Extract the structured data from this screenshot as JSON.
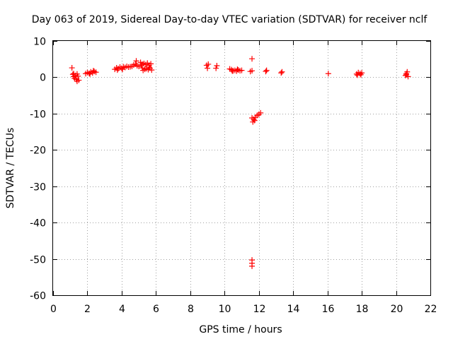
{
  "chart_data": {
    "type": "scatter",
    "title": "Day 063 of 2019, Sidereal Day-to-day VTEC variation (SDTVAR) for receiver nclf",
    "xlabel": "GPS time / hours",
    "ylabel": "SDTVAR / TECUs",
    "xlim": [
      0,
      22
    ],
    "ylim": [
      -60,
      10
    ],
    "xticks": [
      0,
      2,
      4,
      6,
      8,
      10,
      12,
      14,
      16,
      18,
      20,
      22
    ],
    "yticks": [
      10,
      0,
      -10,
      -20,
      -30,
      -40,
      -50,
      -60
    ],
    "grid": true,
    "marker": "plus",
    "color": "#ff0000",
    "series": [
      {
        "name": "SDTVAR",
        "points": [
          [
            1.1,
            2.6
          ],
          [
            1.15,
            0.8
          ],
          [
            1.2,
            0.2
          ],
          [
            1.25,
            -0.3
          ],
          [
            1.3,
            0.5
          ],
          [
            1.35,
            -0.6
          ],
          [
            1.4,
            -1.1
          ],
          [
            1.45,
            0.3
          ],
          [
            1.5,
            -0.8
          ],
          [
            1.2,
            1.0
          ],
          [
            1.4,
            0.9
          ],
          [
            1.9,
            1.0
          ],
          [
            2.0,
            1.3
          ],
          [
            2.1,
            1.1
          ],
          [
            2.2,
            1.5
          ],
          [
            2.3,
            1.2
          ],
          [
            2.4,
            1.6
          ],
          [
            2.5,
            1.4
          ],
          [
            2.15,
            0.9
          ],
          [
            2.35,
            1.8
          ],
          [
            3.6,
            2.2
          ],
          [
            3.7,
            2.6
          ],
          [
            3.8,
            2.4
          ],
          [
            3.9,
            2.8
          ],
          [
            4.0,
            2.5
          ],
          [
            4.1,
            2.9
          ],
          [
            4.2,
            2.7
          ],
          [
            4.3,
            3.0
          ],
          [
            4.4,
            2.8
          ],
          [
            4.5,
            2.9
          ],
          [
            3.75,
            2.0
          ],
          [
            4.05,
            2.2
          ],
          [
            4.6,
            3.0
          ],
          [
            4.7,
            3.4
          ],
          [
            4.8,
            3.6
          ],
          [
            4.85,
            4.5
          ],
          [
            4.9,
            3.2
          ],
          [
            5.0,
            3.0
          ],
          [
            5.1,
            4.1
          ],
          [
            5.15,
            3.2
          ],
          [
            5.2,
            2.6
          ],
          [
            5.25,
            1.9
          ],
          [
            5.3,
            3.8
          ],
          [
            5.35,
            2.2
          ],
          [
            5.4,
            3.5
          ],
          [
            5.45,
            2.4
          ],
          [
            5.5,
            3.9
          ],
          [
            5.55,
            2.1
          ],
          [
            5.6,
            3.3
          ],
          [
            5.65,
            2.5
          ],
          [
            5.7,
            3.7
          ],
          [
            5.75,
            2.0
          ],
          [
            5.2,
            3.6
          ],
          [
            5.6,
            2.8
          ],
          [
            8.95,
            3.3
          ],
          [
            9.0,
            2.5
          ],
          [
            9.05,
            3.6
          ],
          [
            9.5,
            2.5
          ],
          [
            9.55,
            3.2
          ],
          [
            10.3,
            2.3
          ],
          [
            10.4,
            2.1
          ],
          [
            10.5,
            1.8
          ],
          [
            10.6,
            1.9
          ],
          [
            10.7,
            1.7
          ],
          [
            10.8,
            2.0
          ],
          [
            10.9,
            1.8
          ],
          [
            11.0,
            1.9
          ],
          [
            10.45,
            1.7
          ],
          [
            10.75,
            2.2
          ],
          [
            11.5,
            1.6
          ],
          [
            11.6,
            1.8
          ],
          [
            11.6,
            5.1
          ],
          [
            11.6,
            -11.2
          ],
          [
            11.65,
            -12.3
          ],
          [
            11.7,
            -11.6
          ],
          [
            11.75,
            -11.9
          ],
          [
            11.8,
            -11.0
          ],
          [
            11.9,
            -10.5
          ],
          [
            12.0,
            -10.2
          ],
          [
            12.1,
            -9.8
          ],
          [
            11.6,
            -50.3
          ],
          [
            11.6,
            -51.2
          ],
          [
            11.6,
            -52.0
          ],
          [
            12.4,
            1.6
          ],
          [
            12.45,
            1.9
          ],
          [
            13.3,
            1.2
          ],
          [
            13.35,
            1.5
          ],
          [
            16.05,
            1.0
          ],
          [
            17.7,
            0.9
          ],
          [
            17.8,
            1.3
          ],
          [
            17.9,
            1.0
          ],
          [
            18.0,
            1.2
          ],
          [
            17.75,
            0.6
          ],
          [
            17.95,
            0.7
          ],
          [
            20.55,
            0.5
          ],
          [
            20.6,
            1.0
          ],
          [
            20.65,
            1.5
          ],
          [
            20.7,
            0.2
          ],
          [
            20.6,
            0.7
          ]
        ]
      }
    ]
  }
}
